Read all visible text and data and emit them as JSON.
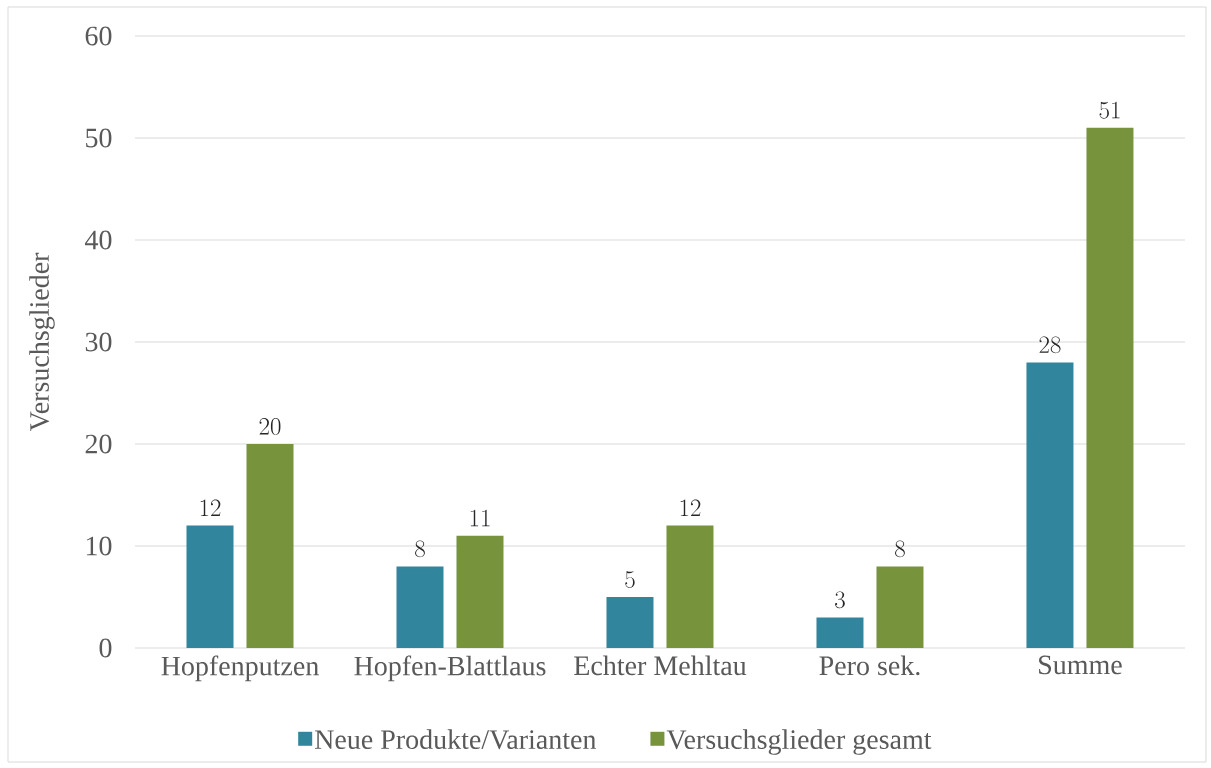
{
  "chart_data": {
    "type": "bar",
    "ylabel": "Versuchsglieder",
    "categories": [
      "Hopfenputzen",
      "Hopfen-Blattlaus",
      "Echter Mehltau",
      "Pero sek.",
      "Summe"
    ],
    "series": [
      {
        "name": "Neue Produkte/Varianten",
        "color": "#31859c",
        "values": [
          12,
          8,
          5,
          3,
          28
        ]
      },
      {
        "name": "Versuchsglieder gesamt",
        "color": "#77933c",
        "values": [
          20,
          11,
          12,
          8,
          51
        ]
      }
    ],
    "ylim": [
      0,
      60
    ],
    "yticks": [
      0,
      10,
      20,
      30,
      40,
      50,
      60
    ],
    "grid": "y",
    "legend": "bottom",
    "data_labels": true
  }
}
